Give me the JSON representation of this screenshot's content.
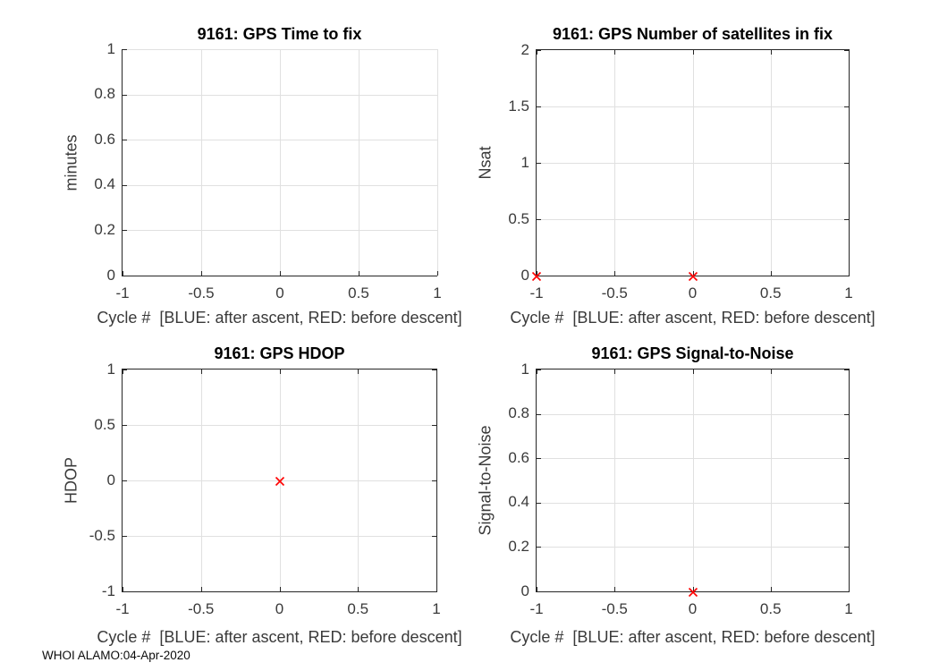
{
  "figure": {
    "footer": "WHOI ALAMO:04-Apr-2020",
    "colors": {
      "background": "#ffffff",
      "axis": "#262626",
      "grid": "#e0e0e0",
      "tick_label": "#3a3a3a",
      "title": "#000000",
      "marker_red": "#ff0000",
      "marker_blue_legend": "#0000ff"
    }
  },
  "chart_data": [
    {
      "type": "scatter",
      "title": "9161: GPS Time to fix",
      "xlabel": "Cycle #  [BLUE: after ascent, RED: before descent]",
      "ylabel": "minutes",
      "xlim": [
        -1,
        1
      ],
      "ylim": [
        0,
        1
      ],
      "xtick_values": [
        -1,
        -0.5,
        0,
        0.5,
        1
      ],
      "xtick_labels": [
        "-1",
        "-0.5",
        "0",
        "0.5",
        "1"
      ],
      "ytick_values": [
        0,
        0.2,
        0.4,
        0.6,
        0.8,
        1
      ],
      "ytick_labels": [
        "0",
        "0.2",
        "0.4",
        "0.6",
        "0.8",
        "1"
      ],
      "grid": true,
      "box": false,
      "legend_position": "none",
      "series": [
        {
          "name": "before descent (RED)",
          "marker": "x",
          "color": "#ff0000",
          "points": []
        }
      ]
    },
    {
      "type": "scatter",
      "title": "9161: GPS Number of satellites in fix",
      "xlabel": "Cycle #  [BLUE: after ascent, RED: before descent]",
      "ylabel": "Nsat",
      "xlim": [
        -1,
        1
      ],
      "ylim": [
        0,
        2
      ],
      "xtick_values": [
        -1,
        -0.5,
        0,
        0.5,
        1
      ],
      "xtick_labels": [
        "-1",
        "-0.5",
        "0",
        "0.5",
        "1"
      ],
      "ytick_values": [
        0,
        0.5,
        1,
        1.5,
        2
      ],
      "ytick_labels": [
        "0",
        "0.5",
        "1",
        "1.5",
        "2"
      ],
      "grid": true,
      "box": true,
      "legend_position": "none",
      "series": [
        {
          "name": "before descent (RED)",
          "marker": "x",
          "color": "#ff0000",
          "points": [
            [
              -1,
              0
            ],
            [
              0,
              0
            ]
          ]
        }
      ]
    },
    {
      "type": "scatter",
      "title": "9161: GPS HDOP",
      "xlabel": "Cycle #  [BLUE: after ascent, RED: before descent]",
      "ylabel": "HDOP",
      "xlim": [
        -1,
        1
      ],
      "ylim": [
        -1,
        1
      ],
      "xtick_values": [
        -1,
        -0.5,
        0,
        0.5,
        1
      ],
      "xtick_labels": [
        "-1",
        "-0.5",
        "0",
        "0.5",
        "1"
      ],
      "ytick_values": [
        -1,
        -0.5,
        0,
        0.5,
        1
      ],
      "ytick_labels": [
        "-1",
        "-0.5",
        "0",
        "0.5",
        "1"
      ],
      "grid": true,
      "box": true,
      "legend_position": "none",
      "series": [
        {
          "name": "before descent (RED)",
          "marker": "x",
          "color": "#ff0000",
          "points": [
            [
              0,
              0
            ]
          ]
        }
      ]
    },
    {
      "type": "scatter",
      "title": "9161: GPS Signal-to-Noise",
      "xlabel": "Cycle #  [BLUE: after ascent, RED: before descent]",
      "ylabel": "Signal-to-Noise",
      "xlim": [
        -1,
        1
      ],
      "ylim": [
        0,
        1
      ],
      "xtick_values": [
        -1,
        -0.5,
        0,
        0.5,
        1
      ],
      "xtick_labels": [
        "-1",
        "-0.5",
        "0",
        "0.5",
        "1"
      ],
      "ytick_values": [
        0,
        0.2,
        0.4,
        0.6,
        0.8,
        1
      ],
      "ytick_labels": [
        "0",
        "0.2",
        "0.4",
        "0.6",
        "0.8",
        "1"
      ],
      "grid": true,
      "box": true,
      "legend_position": "none",
      "series": [
        {
          "name": "before descent (RED)",
          "marker": "x",
          "color": "#ff0000",
          "points": [
            [
              0,
              0
            ]
          ]
        }
      ]
    }
  ]
}
